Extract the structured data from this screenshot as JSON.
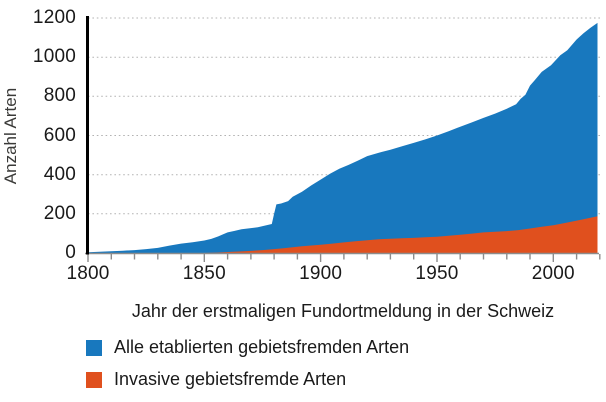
{
  "figure": {
    "background": "#ffffff",
    "text_color": "#1a1a1a",
    "axis_color": "#000000",
    "tick_color": "#8c8c8c",
    "gridline_color": "#b3b3b3"
  },
  "chart_data": {
    "type": "area",
    "title": "",
    "ylabel": "Anzahl Arten",
    "xlabel": "Jahr der erstmaligen Fundortmeldung in der Schweiz",
    "xlim": [
      1800,
      2019
    ],
    "ylim": [
      0,
      1200
    ],
    "yticks": [
      0,
      200,
      400,
      600,
      800,
      1000,
      1200
    ],
    "xticks_major": [
      1800,
      1850,
      1900,
      1950,
      2000
    ],
    "xtick_minor_step": 10,
    "grid": "horizontal-dotted",
    "legend_position": "below-left",
    "series": [
      {
        "key": "established",
        "name": "Alle etablierten gebietsfremden Arten",
        "color": "#1878be",
        "x": [
          1800,
          1805,
          1810,
          1815,
          1820,
          1825,
          1830,
          1835,
          1840,
          1845,
          1850,
          1853,
          1856,
          1858,
          1860,
          1863,
          1866,
          1870,
          1873,
          1876,
          1879,
          1880,
          1881,
          1883,
          1886,
          1888,
          1892,
          1896,
          1900,
          1904,
          1908,
          1912,
          1916,
          1920,
          1925,
          1930,
          1935,
          1940,
          1945,
          1950,
          1955,
          1960,
          1965,
          1970,
          1975,
          1980,
          1984,
          1986,
          1988,
          1990,
          1992,
          1995,
          1999,
          2003,
          2006,
          2010,
          2013,
          2016,
          2019
        ],
        "values": [
          4,
          6,
          9,
          12,
          15,
          20,
          26,
          38,
          48,
          55,
          64,
          72,
          85,
          95,
          105,
          113,
          121,
          127,
          132,
          140,
          148,
          200,
          248,
          253,
          265,
          287,
          313,
          345,
          375,
          405,
          430,
          450,
          472,
          495,
          512,
          527,
          545,
          562,
          580,
          600,
          622,
          645,
          667,
          690,
          712,
          737,
          760,
          788,
          808,
          855,
          882,
          925,
          959,
          1010,
          1035,
          1090,
          1122,
          1150,
          1175
        ]
      },
      {
        "key": "invasive",
        "name": "Invasive gebietsfremde Arten",
        "color": "#e0501e",
        "x": [
          1800,
          1850,
          1855,
          1860,
          1866,
          1871,
          1875,
          1880,
          1884,
          1892,
          1900,
          1905,
          1910,
          1915,
          1920,
          1925,
          1930,
          1935,
          1940,
          1945,
          1950,
          1955,
          1960,
          1965,
          1970,
          1975,
          1980,
          1985,
          1990,
          1995,
          2000,
          2005,
          2009,
          2013,
          2016,
          2019
        ],
        "values": [
          0,
          0,
          2,
          5,
          8,
          12,
          15,
          20,
          24,
          34,
          42,
          48,
          54,
          60,
          65,
          70,
          73,
          75,
          77,
          80,
          83,
          88,
          93,
          99,
          105,
          109,
          112,
          117,
          125,
          134,
          142,
          153,
          163,
          172,
          180,
          188
        ]
      }
    ]
  }
}
